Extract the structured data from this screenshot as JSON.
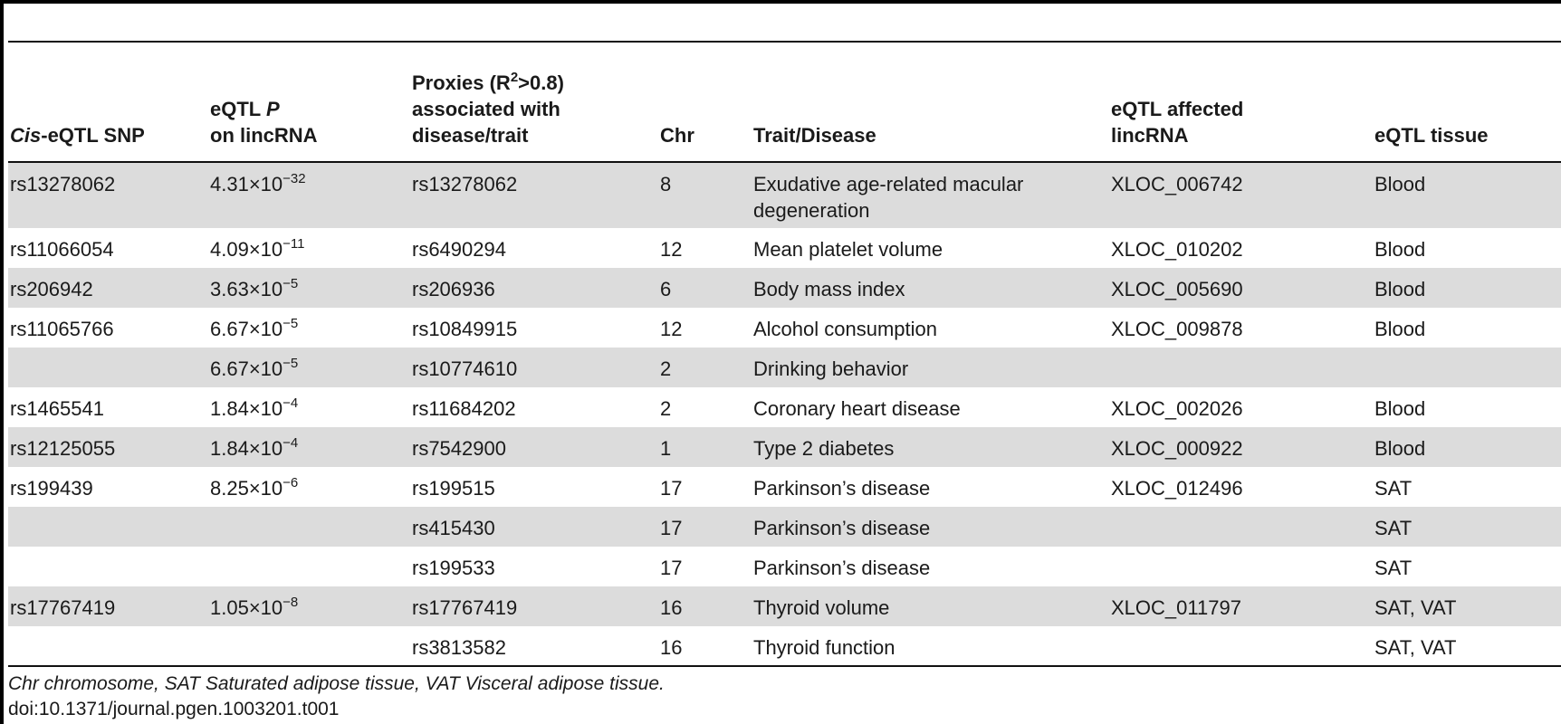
{
  "headers": {
    "snp_prefix": "Cis",
    "snp_suffix": "-eQTL SNP",
    "eqtl_line1_a": "eQTL ",
    "eqtl_line1_p": "P",
    "eqtl_line2": "on lincRNA",
    "proxies_line1_a": "Proxies (R",
    "proxies_sup": "2",
    "proxies_line1_b": ">0.8)",
    "proxies_line2": "associated with",
    "proxies_line3": "disease/trait",
    "chr": "Chr",
    "trait": "Trait/Disease",
    "lincrna_line1": "eQTL affected",
    "lincrna_line2": "lincRNA",
    "tissue": "eQTL tissue"
  },
  "rows": [
    {
      "snp": "rs13278062",
      "p_mant": "4.31",
      "p_times": "×10",
      "p_exp": "−32",
      "proxy": "rs13278062",
      "chr": "8",
      "trait": "Exudative age-related macular degeneration",
      "lincrna": "XLOC_006742",
      "tissue": "Blood"
    },
    {
      "snp": "rs11066054",
      "p_mant": "4.09",
      "p_times": "×10",
      "p_exp": "−11",
      "proxy": "rs6490294",
      "chr": "12",
      "trait": "Mean platelet volume",
      "lincrna": "XLOC_010202",
      "tissue": "Blood"
    },
    {
      "snp": "rs206942",
      "p_mant": "3.63",
      "p_times": "×10",
      "p_exp": "−5",
      "proxy": "rs206936",
      "chr": "6",
      "trait": "Body mass index",
      "lincrna": "XLOC_005690",
      "tissue": "Blood"
    },
    {
      "snp": "rs11065766",
      "p_mant": "6.67",
      "p_times": "×10",
      "p_exp": "−5",
      "proxy": "rs10849915",
      "chr": "12",
      "trait": "Alcohol consumption",
      "lincrna": "XLOC_009878",
      "tissue": "Blood"
    },
    {
      "snp": "",
      "p_mant": "6.67",
      "p_times": "×10",
      "p_exp": "−5",
      "proxy": "rs10774610",
      "chr": "2",
      "trait": "Drinking behavior",
      "lincrna": "",
      "tissue": ""
    },
    {
      "snp": "rs1465541",
      "p_mant": "1.84",
      "p_times": "×10",
      "p_exp": "−4",
      "proxy": "rs11684202",
      "chr": "2",
      "trait": "Coronary heart disease",
      "lincrna": "XLOC_002026",
      "tissue": "Blood"
    },
    {
      "snp": "rs12125055",
      "p_mant": "1.84",
      "p_times": "×10",
      "p_exp": "−4",
      "proxy": "rs7542900",
      "chr": "1",
      "trait": "Type 2 diabetes",
      "lincrna": "XLOC_000922",
      "tissue": "Blood"
    },
    {
      "snp": "rs199439",
      "p_mant": "8.25",
      "p_times": "×10",
      "p_exp": "−6",
      "proxy": "rs199515",
      "chr": "17",
      "trait": "Parkinson’s disease",
      "lincrna": "XLOC_012496",
      "tissue": "SAT"
    },
    {
      "snp": "",
      "p_mant": "",
      "p_times": "",
      "p_exp": "",
      "proxy": "rs415430",
      "chr": "17",
      "trait": "Parkinson’s disease",
      "lincrna": "",
      "tissue": "SAT"
    },
    {
      "snp": "",
      "p_mant": "",
      "p_times": "",
      "p_exp": "",
      "proxy": "rs199533",
      "chr": "17",
      "trait": "Parkinson’s disease",
      "lincrna": "",
      "tissue": "SAT"
    },
    {
      "snp": "rs17767419",
      "p_mant": "1.05",
      "p_times": "×10",
      "p_exp": "−8",
      "proxy": "rs17767419",
      "chr": "16",
      "trait": "Thyroid volume",
      "lincrna": "XLOC_011797",
      "tissue": "SAT, VAT"
    },
    {
      "snp": "",
      "p_mant": "",
      "p_times": "",
      "p_exp": "",
      "proxy": "rs3813582",
      "chr": "16",
      "trait": "Thyroid function",
      "lincrna": "",
      "tissue": "SAT, VAT"
    }
  ],
  "footnote": "Chr chromosome, SAT Saturated adipose tissue, VAT Visceral adipose tissue.",
  "doi": "doi:10.1371/journal.pgen.1003201.t001"
}
